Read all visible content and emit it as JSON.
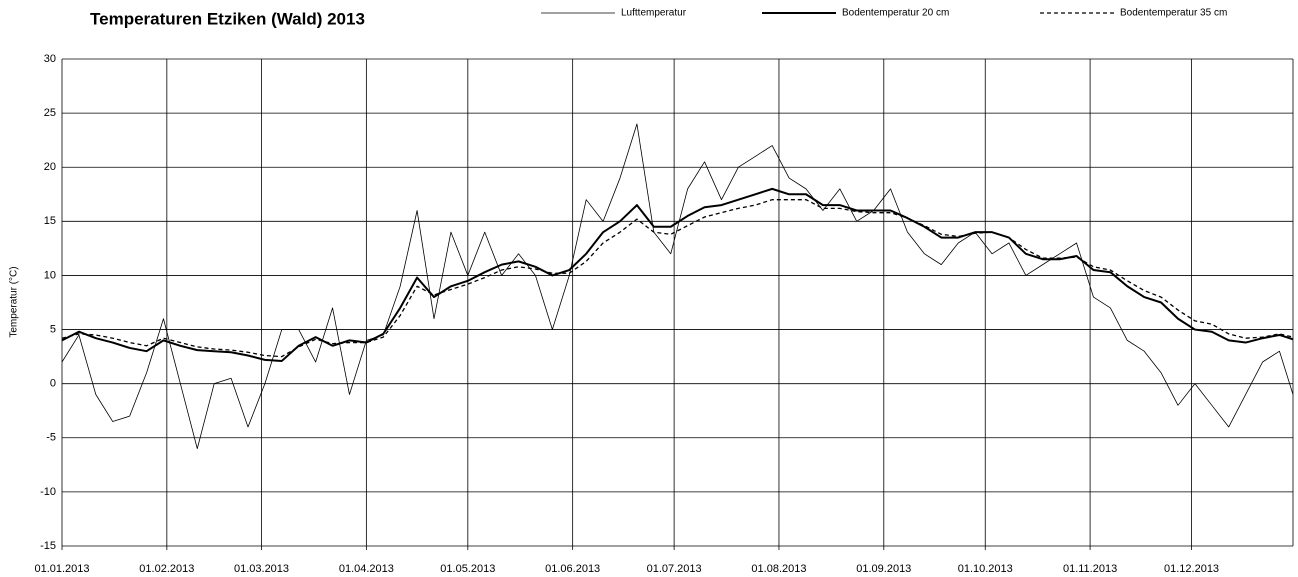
{
  "chart_data": {
    "type": "line",
    "title": "Temperaturen Etziken (Wald) 2013",
    "y_label": "Temperatur (°C)",
    "x": [
      "01.01.2013",
      "06.01.2013",
      "11.01.2013",
      "16.01.2013",
      "21.01.2013",
      "26.01.2013",
      "31.01.2013",
      "05.02.2013",
      "10.02.2013",
      "15.02.2013",
      "20.02.2013",
      "25.02.2013",
      "02.03.2013",
      "07.03.2013",
      "12.03.2013",
      "17.03.2013",
      "22.03.2013",
      "27.03.2013",
      "01.04.2013",
      "06.04.2013",
      "11.04.2013",
      "16.04.2013",
      "21.04.2013",
      "26.04.2013",
      "01.05.2013",
      "06.05.2013",
      "11.05.2013",
      "16.05.2013",
      "21.05.2013",
      "26.05.2013",
      "31.05.2013",
      "05.06.2013",
      "10.06.2013",
      "15.06.2013",
      "20.06.2013",
      "25.06.2013",
      "30.06.2013",
      "05.07.2013",
      "10.07.2013",
      "15.07.2013",
      "20.07.2013",
      "25.07.2013",
      "30.07.2013",
      "04.08.2013",
      "09.08.2013",
      "14.08.2013",
      "19.08.2013",
      "24.08.2013",
      "29.08.2013",
      "03.09.2013",
      "08.09.2013",
      "13.09.2013",
      "18.09.2013",
      "23.09.2013",
      "28.09.2013",
      "03.10.2013",
      "08.10.2013",
      "13.10.2013",
      "18.10.2013",
      "23.10.2013",
      "28.10.2013",
      "02.11.2013",
      "07.11.2013",
      "12.11.2013",
      "17.11.2013",
      "22.11.2013",
      "27.11.2013",
      "02.12.2013",
      "07.12.2013",
      "12.12.2013",
      "17.12.2013",
      "22.12.2013",
      "27.12.2013",
      "31.12.2013"
    ],
    "series": [
      {
        "name": "Lufttemperatur",
        "color": "#000000",
        "width": 0.8,
        "dash": "none",
        "values": [
          2,
          4.5,
          -1,
          -3.5,
          -3,
          1,
          6,
          0,
          -6,
          0,
          0.5,
          -4,
          0,
          5,
          5,
          2,
          7,
          -1,
          4,
          4.5,
          9,
          16,
          6,
          14,
          10,
          14,
          10,
          12,
          10,
          5,
          10,
          17,
          15,
          19,
          24,
          14,
          12,
          18,
          20.5,
          17,
          20,
          21,
          22,
          19,
          18,
          16,
          18,
          15,
          16,
          18,
          14,
          12,
          11,
          13,
          14,
          12,
          13,
          10,
          11,
          12,
          13,
          8,
          7,
          4,
          3,
          1,
          -2,
          0,
          -2,
          -4,
          -1,
          2,
          3,
          -1
        ]
      },
      {
        "name": "Bodentemperatur 20 cm",
        "color": "#000000",
        "width": 2,
        "dash": "none",
        "values": [
          4,
          4.8,
          4.2,
          3.8,
          3.3,
          3,
          4,
          3.5,
          3.1,
          3,
          2.9,
          2.6,
          2.2,
          2.1,
          3.5,
          4.3,
          3.5,
          4,
          3.8,
          4.6,
          7,
          9.8,
          8,
          9,
          9.5,
          10.3,
          11,
          11.3,
          10.8,
          10,
          10.5,
          12,
          14,
          15,
          16.5,
          14.5,
          14.5,
          15.5,
          16.3,
          16.5,
          17,
          17.5,
          18,
          17.5,
          17.5,
          16.5,
          16.5,
          16,
          16,
          16,
          15.3,
          14.5,
          13.5,
          13.5,
          14,
          14,
          13.5,
          12,
          11.5,
          11.5,
          11.8,
          10.5,
          10.3,
          9,
          8,
          7.5,
          6,
          5,
          4.8,
          4,
          3.8,
          4.2,
          4.5,
          4.1
        ]
      },
      {
        "name": "Bodentemperatur 35 cm",
        "color": "#000000",
        "width": 1.3,
        "dash": "4,3",
        "values": [
          4.2,
          4.6,
          4.5,
          4.2,
          3.8,
          3.5,
          4.2,
          3.8,
          3.4,
          3.2,
          3.1,
          2.9,
          2.6,
          2.5,
          3.4,
          4.1,
          3.7,
          3.8,
          3.8,
          4.3,
          6.3,
          9,
          8.2,
          8.7,
          9.2,
          9.8,
          10.5,
          10.8,
          10.6,
          10.2,
          10.2,
          11.3,
          13,
          14,
          15.2,
          14,
          13.8,
          14.6,
          15.4,
          15.8,
          16.2,
          16.5,
          17,
          17,
          17,
          16.2,
          16.2,
          15.9,
          15.8,
          15.8,
          15.3,
          14.6,
          13.8,
          13.6,
          13.9,
          14,
          13.5,
          12.4,
          11.6,
          11.6,
          11.7,
          10.8,
          10.5,
          9.5,
          8.6,
          8,
          6.8,
          5.8,
          5.5,
          4.6,
          4.2,
          4.3,
          4.6,
          4.3
        ]
      }
    ],
    "xlim": [
      "01.01.2013",
      "31.12.2013"
    ],
    "xticks": [
      "01.01.2013",
      "01.02.2013",
      "01.03.2013",
      "01.04.2013",
      "01.05.2013",
      "01.06.2013",
      "01.07.2013",
      "01.08.2013",
      "01.09.2013",
      "01.10.2013",
      "01.11.2013",
      "01.12.2013"
    ],
    "ylim": [
      -15,
      30
    ],
    "yticks": [
      -15,
      -10,
      -5,
      0,
      5,
      10,
      15,
      20,
      25,
      30
    ],
    "grid": true,
    "legend": "top"
  }
}
